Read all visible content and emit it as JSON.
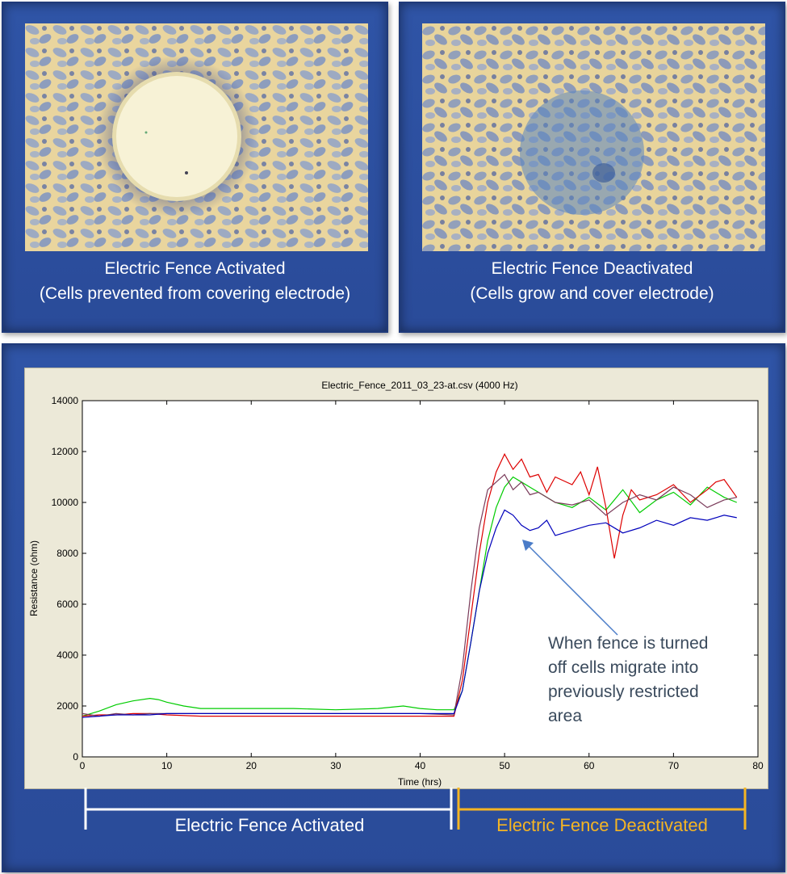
{
  "panels": {
    "activated": {
      "caption_line1": "Electric Fence Activated",
      "caption_line2": "(Cells prevented from covering electrode)"
    },
    "deactivated": {
      "caption_line1": "Electric Fence Deactivated",
      "caption_line2": "(Cells grow and cover electrode)"
    }
  },
  "annotation": {
    "lines": [
      "When fence is turned",
      "off cells migrate into",
      "previously restricted",
      "area"
    ]
  },
  "phases": {
    "activated_label": "Electric Fence Activated",
    "deactivated_label": "Electric Fence Deactivated",
    "activated_color": "#ffffff",
    "deactivated_color": "#f5b523"
  },
  "colors": {
    "panel_blue": "#2f54a6",
    "chart_bg": "#ece9d8"
  },
  "chart_data": {
    "type": "line",
    "title": "Electric_Fence_2011_03_23-at.csv (4000 Hz)",
    "xlabel": "Time (hrs)",
    "ylabel": "Resistance (ohm)",
    "xlim": [
      0,
      80
    ],
    "ylim": [
      0,
      14000
    ],
    "xticks": [
      0,
      10,
      20,
      30,
      40,
      50,
      60,
      70,
      80
    ],
    "yticks": [
      0,
      2000,
      4000,
      6000,
      8000,
      10000,
      12000,
      14000
    ],
    "grid": false,
    "series": [
      {
        "color": "#00cc00",
        "x": [
          0,
          2,
          4,
          6,
          8,
          9,
          10,
          12,
          14,
          16,
          20,
          25,
          30,
          35,
          38,
          40,
          42,
          44,
          45,
          46,
          47,
          48,
          49,
          50,
          51,
          52,
          53,
          54,
          56,
          58,
          60,
          62,
          64,
          66,
          68,
          70,
          72,
          74,
          76,
          77.5
        ],
        "y": [
          1600,
          1800,
          2050,
          2200,
          2300,
          2250,
          2150,
          2000,
          1900,
          1900,
          1900,
          1900,
          1850,
          1900,
          2000,
          1900,
          1850,
          1850,
          2600,
          4500,
          6500,
          8500,
          9800,
          10600,
          11000,
          10800,
          10600,
          10400,
          10000,
          9800,
          10200,
          9700,
          10500,
          9600,
          10100,
          10400,
          9900,
          10600,
          10200,
          10000
        ]
      },
      {
        "color": "#dd0000",
        "x": [
          0,
          2,
          4,
          6,
          8,
          10,
          14,
          20,
          30,
          40,
          44,
          45,
          46,
          47,
          48,
          49,
          50,
          51,
          52,
          53,
          54,
          55,
          56,
          58,
          59,
          60,
          61,
          62,
          63,
          64,
          65,
          66,
          68,
          70,
          72,
          74,
          75,
          76,
          77.5
        ],
        "y": [
          1600,
          1650,
          1650,
          1700,
          1700,
          1650,
          1600,
          1600,
          1600,
          1600,
          1600,
          3000,
          5500,
          8000,
          10000,
          11200,
          11900,
          11300,
          11700,
          11000,
          11100,
          10400,
          11000,
          10700,
          11200,
          10300,
          11400,
          9800,
          7800,
          9500,
          10500,
          10100,
          10300,
          10700,
          10000,
          10500,
          10800,
          10900,
          10200
        ]
      },
      {
        "color": "#7a3b5a",
        "x": [
          0,
          2,
          4,
          6,
          8,
          10,
          20,
          30,
          40,
          44,
          45,
          46,
          47,
          48,
          49,
          50,
          51,
          52,
          53,
          54,
          56,
          58,
          60,
          62,
          64,
          66,
          68,
          70,
          72,
          74,
          76,
          77.5
        ],
        "y": [
          1700,
          1600,
          1700,
          1650,
          1700,
          1700,
          1700,
          1700,
          1700,
          1650,
          3500,
          6500,
          9000,
          10500,
          10800,
          11100,
          10500,
          10800,
          10300,
          10400,
          10000,
          9900,
          10100,
          9500,
          10000,
          10300,
          10100,
          10600,
          10300,
          9800,
          10100,
          10200
        ]
      },
      {
        "color": "#0000bb",
        "x": [
          0,
          2,
          4,
          6,
          8,
          10,
          20,
          30,
          40,
          44,
          45,
          46,
          47,
          48,
          49,
          50,
          51,
          52,
          53,
          54,
          55,
          56,
          58,
          60,
          62,
          64,
          66,
          68,
          70,
          72,
          74,
          76,
          77.5
        ],
        "y": [
          1550,
          1600,
          1650,
          1650,
          1650,
          1700,
          1700,
          1700,
          1700,
          1700,
          2600,
          4500,
          6500,
          8000,
          9000,
          9700,
          9500,
          9100,
          8900,
          9000,
          9300,
          8700,
          8900,
          9100,
          9200,
          8800,
          9000,
          9300,
          9100,
          9400,
          9300,
          9500,
          9400
        ]
      }
    ]
  }
}
